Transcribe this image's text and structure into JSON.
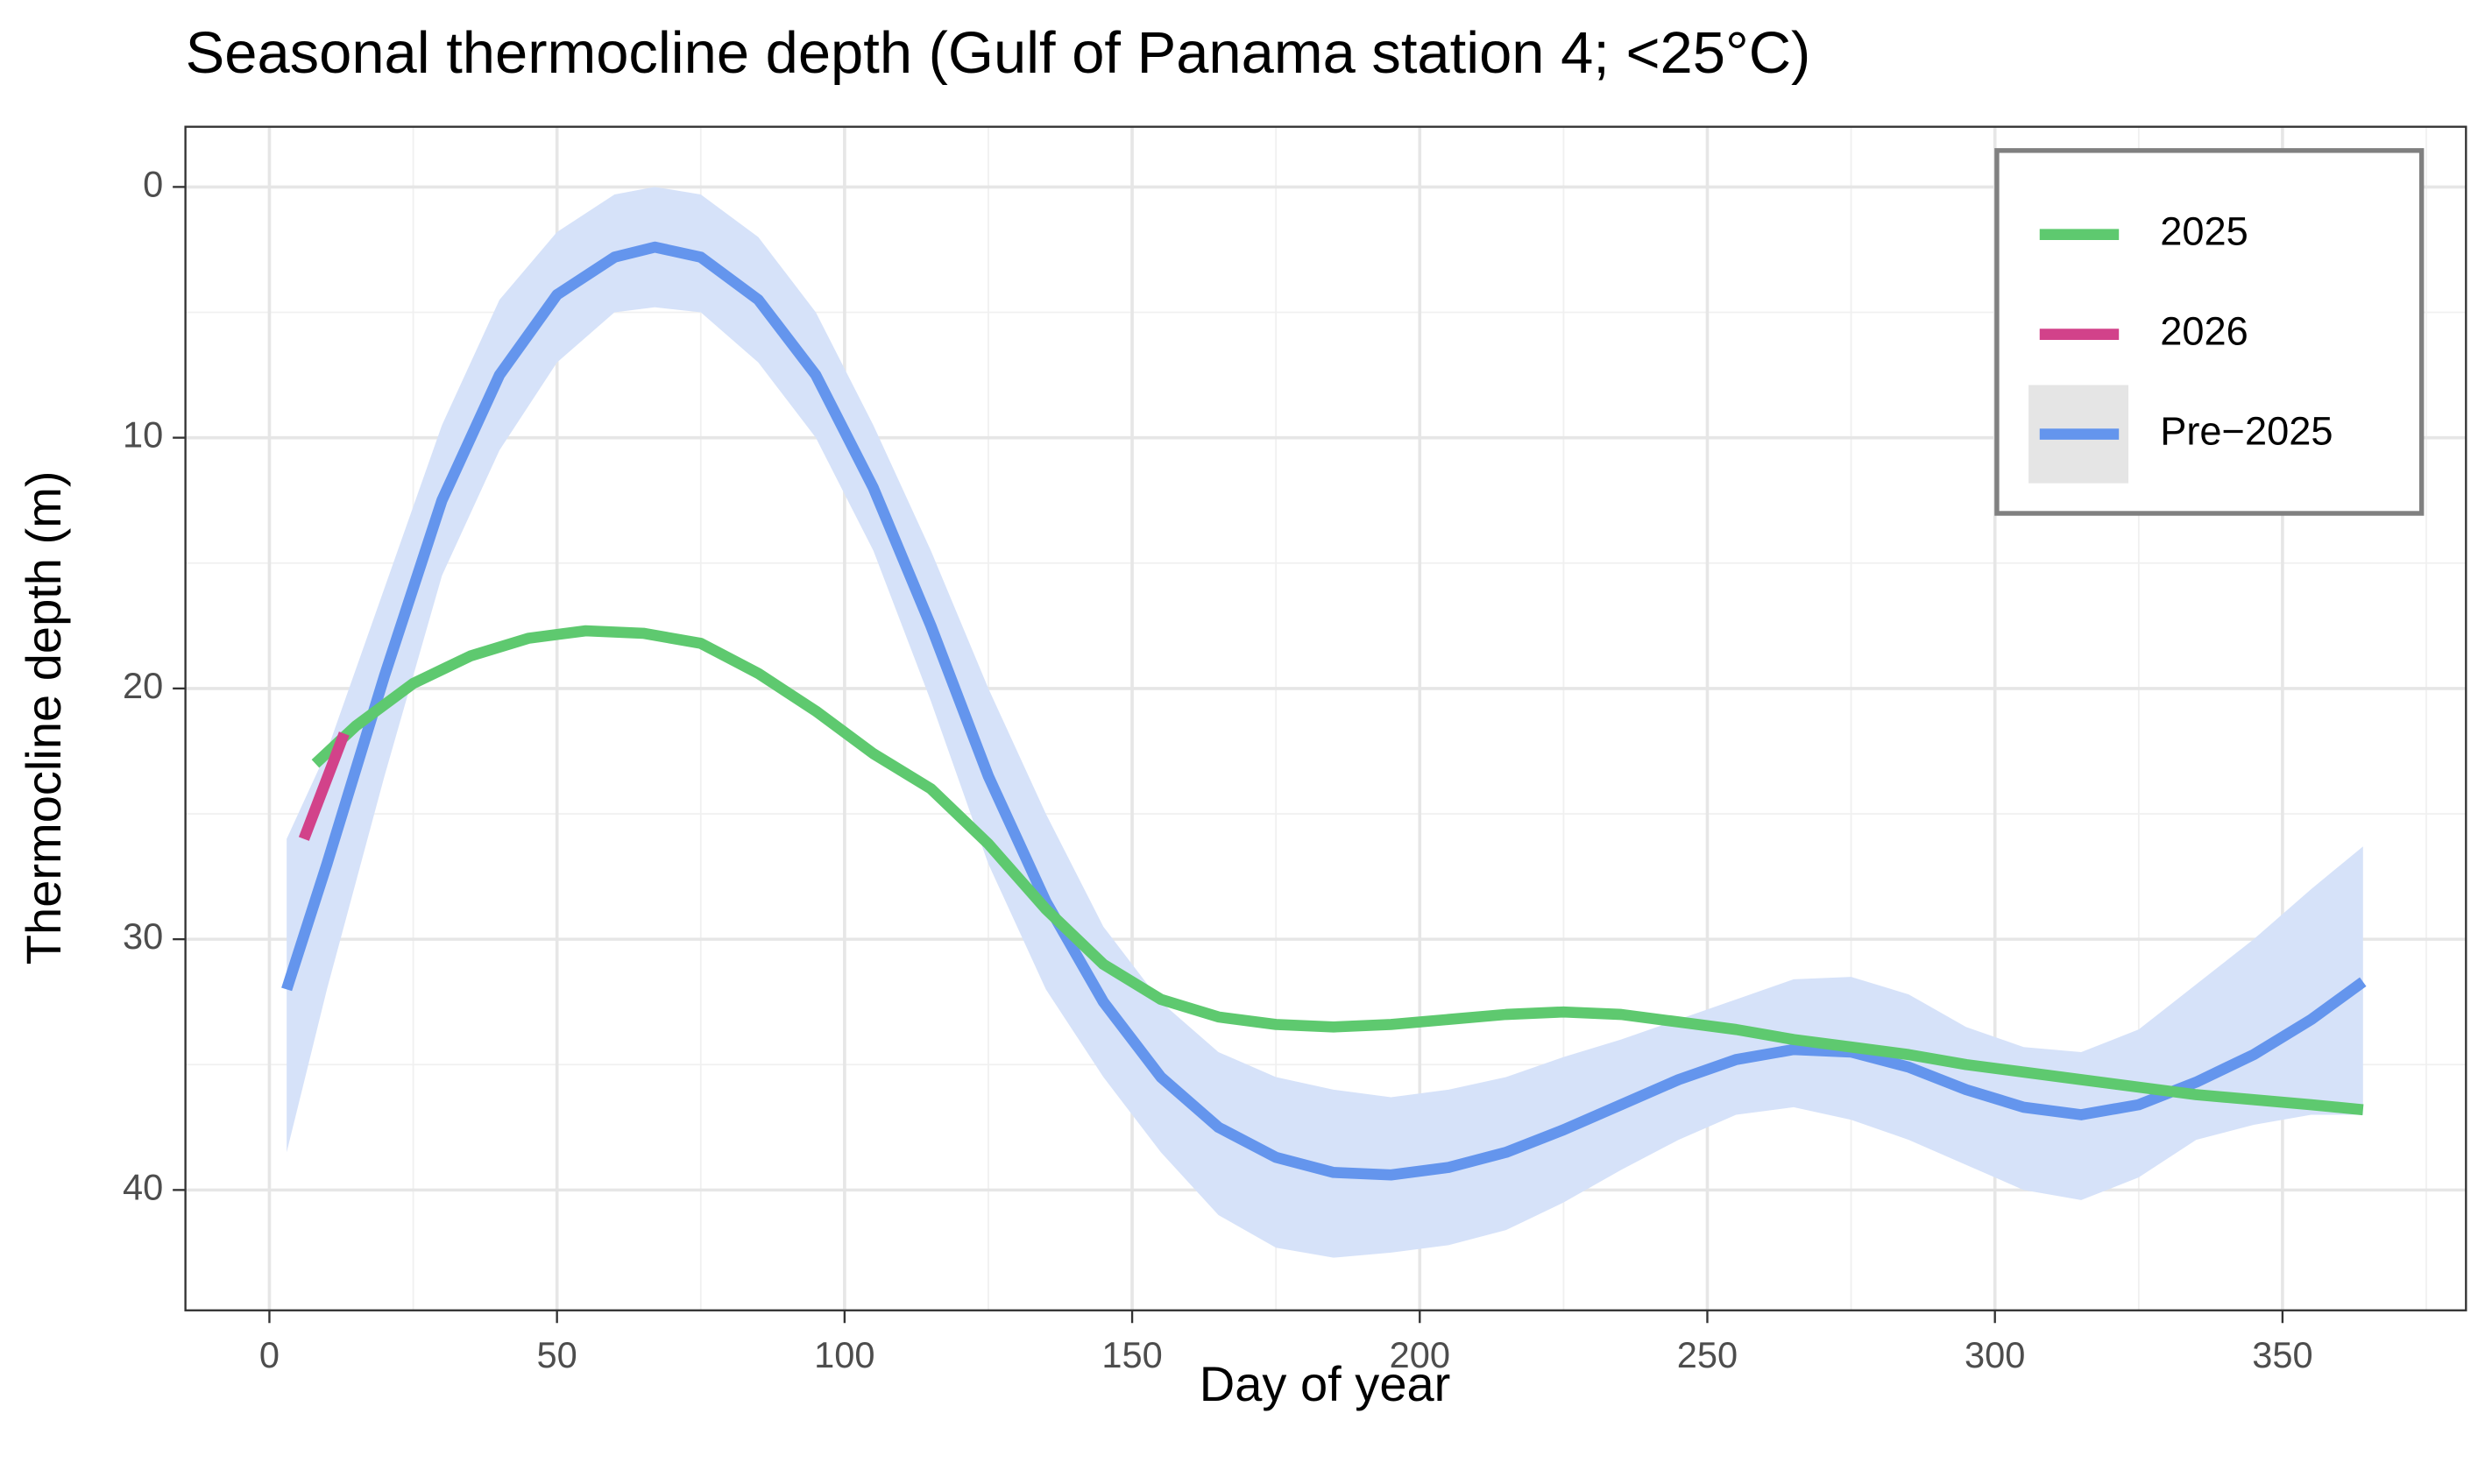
{
  "chart_data": {
    "type": "line",
    "title": "Seasonal thermocline depth (Gulf of Panama station 4; <25°C)",
    "x_label": "Day of year",
    "y_label": "Thermocline depth (m)",
    "xlim": [
      -14.6,
      381.9
    ],
    "ylim": [
      44.8,
      -2.4
    ],
    "xticks": [
      0,
      50,
      100,
      150,
      200,
      250,
      300,
      350
    ],
    "yticks": [
      0,
      10,
      20,
      30,
      40
    ],
    "y_reversed": true,
    "grid": true,
    "legend": "top-right",
    "series": [
      {
        "name": "2025",
        "color": "#5ec96f",
        "x": [
          8,
          15,
          25,
          35,
          45,
          55,
          65,
          75,
          85,
          95,
          105,
          115,
          125,
          135,
          145,
          155,
          165,
          175,
          185,
          195,
          205,
          215,
          225,
          235,
          245,
          255,
          265,
          275,
          285,
          295,
          305,
          315,
          325,
          335,
          345,
          355,
          364
        ],
        "values": [
          23,
          21.5,
          19.8,
          18.7,
          18,
          17.7,
          17.8,
          18.2,
          19.4,
          20.9,
          22.6,
          24,
          26.2,
          28.8,
          31,
          32.4,
          33.1,
          33.4,
          33.5,
          33.4,
          33.2,
          33,
          32.9,
          33,
          33.3,
          33.6,
          34,
          34.3,
          34.6,
          35,
          35.3,
          35.6,
          35.9,
          36.2,
          36.4,
          36.6,
          36.8
        ]
      },
      {
        "name": "2026",
        "color": "#d2428a",
        "x": [
          6,
          13
        ],
        "values": [
          26,
          21.8
        ]
      },
      {
        "name": "Pre−2025",
        "color": "#6495ed",
        "band_color": "#d6e2f9",
        "x": [
          3,
          10,
          20,
          30,
          40,
          50,
          60,
          67,
          75,
          85,
          95,
          105,
          115,
          125,
          135,
          145,
          155,
          165,
          175,
          185,
          195,
          205,
          215,
          225,
          235,
          245,
          255,
          265,
          275,
          285,
          295,
          305,
          315,
          325,
          335,
          345,
          355,
          364
        ],
        "values": [
          32,
          27,
          19.5,
          12.5,
          7.5,
          4.3,
          2.8,
          2.4,
          2.8,
          4.5,
          7.5,
          12,
          17.5,
          23.5,
          28.5,
          32.5,
          35.5,
          37.5,
          38.7,
          39.3,
          39.4,
          39.1,
          38.5,
          37.6,
          36.6,
          35.6,
          34.8,
          34.4,
          34.5,
          35.1,
          36,
          36.7,
          37,
          36.6,
          35.7,
          34.6,
          33.2,
          31.7
        ],
        "lower": [
          26,
          22.5,
          16,
          9.5,
          4.5,
          1.8,
          0.3,
          0,
          0.3,
          2,
          5,
          9.5,
          14.5,
          20,
          25,
          29.5,
          32.5,
          34.5,
          35.5,
          36,
          36.3,
          36,
          35.5,
          34.7,
          34,
          33.2,
          32.4,
          31.6,
          31.5,
          32.2,
          33.5,
          34.3,
          34.5,
          33.6,
          31.8,
          30,
          28,
          26.3
        ],
        "upper": [
          38.5,
          32,
          23.5,
          15.5,
          10.5,
          7,
          5,
          4.8,
          5,
          7,
          10,
          14.5,
          20.5,
          27,
          32,
          35.5,
          38.5,
          41,
          42.3,
          42.7,
          42.5,
          42.2,
          41.6,
          40.5,
          39.2,
          38,
          37,
          36.7,
          37.2,
          38,
          39,
          40,
          40.4,
          39.5,
          38,
          37.4,
          37,
          37
        ]
      }
    ]
  }
}
